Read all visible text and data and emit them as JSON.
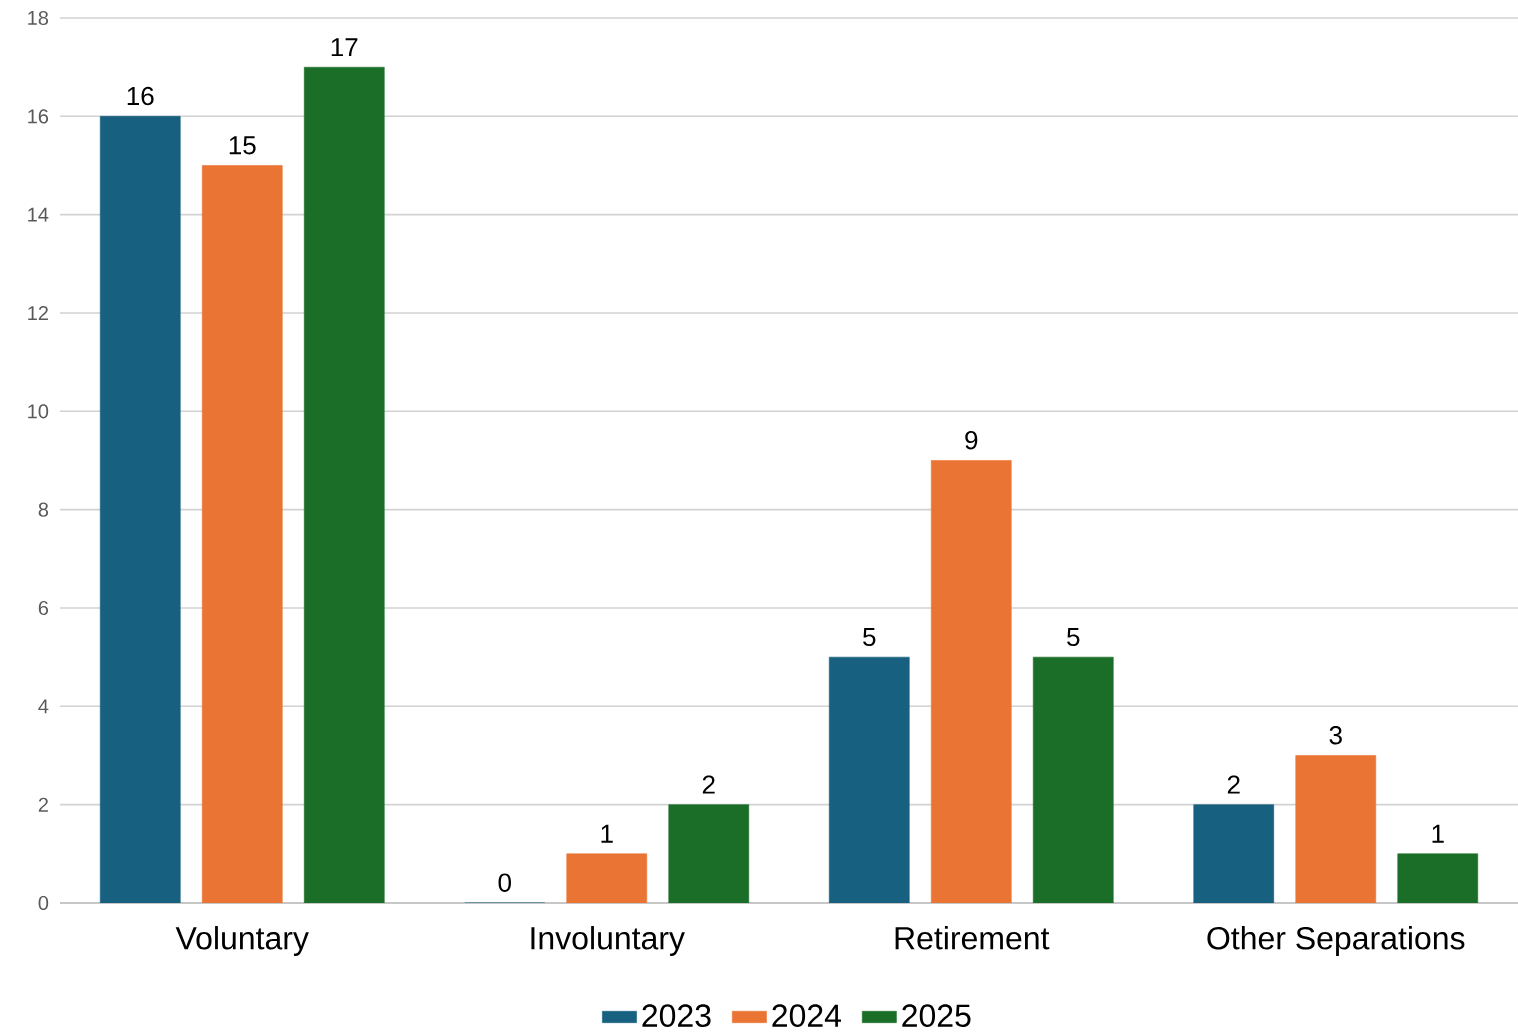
{
  "chart_data": {
    "type": "bar",
    "categories": [
      "Voluntary",
      "Involuntary",
      "Retirement",
      "Other Separations"
    ],
    "series": [
      {
        "name": "2023",
        "color": "#17607f",
        "values": [
          16,
          0,
          5,
          2
        ]
      },
      {
        "name": "2024",
        "color": "#e97434",
        "values": [
          15,
          1,
          9,
          3
        ]
      },
      {
        "name": "2025",
        "color": "#1b6e28",
        "values": [
          17,
          2,
          5,
          1
        ]
      }
    ],
    "ylim": [
      0,
      18
    ],
    "yticks": [
      0,
      2,
      4,
      6,
      8,
      10,
      12,
      14,
      16,
      18
    ],
    "grid": "y",
    "legend": "bottom",
    "data_labels": true
  }
}
